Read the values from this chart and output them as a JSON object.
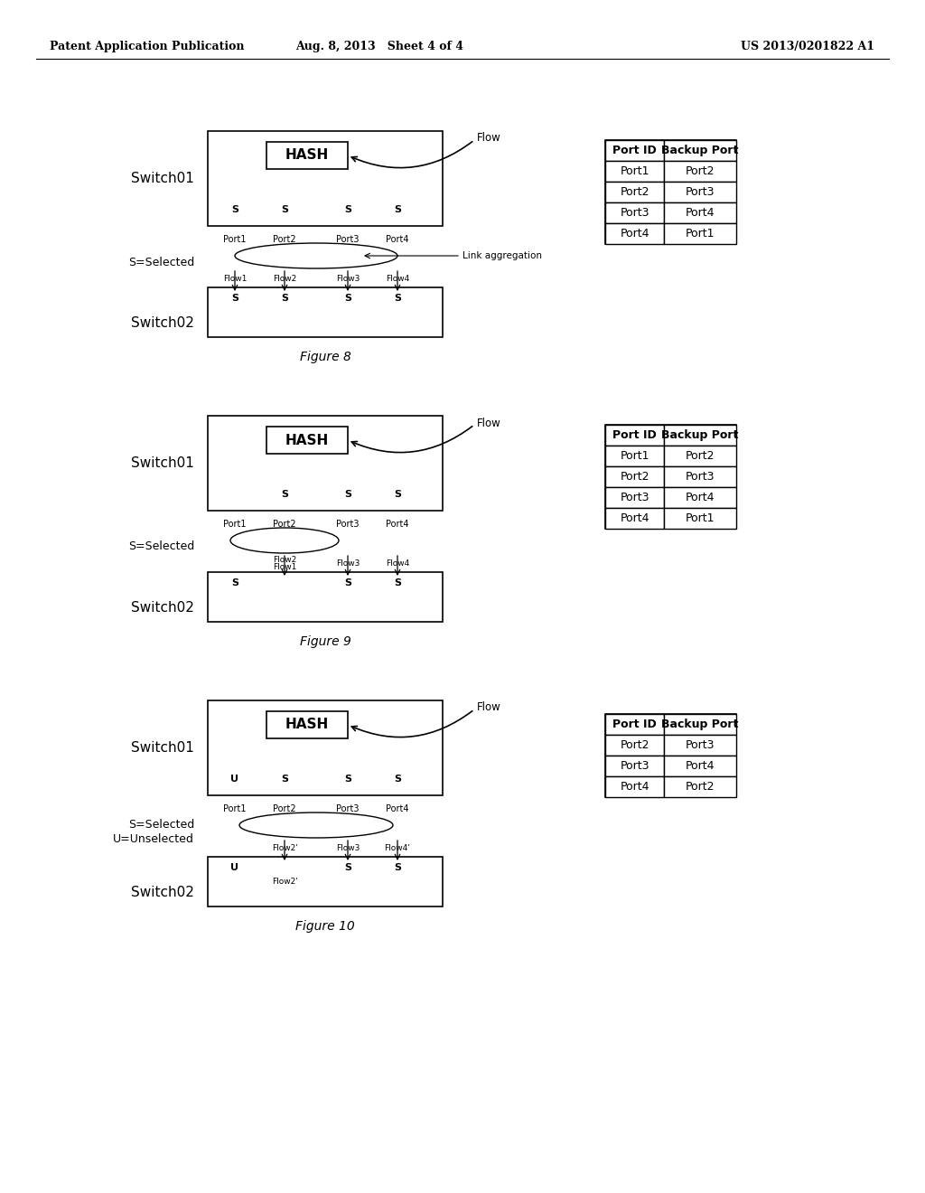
{
  "header_left": "Patent Application Publication",
  "header_mid": "Aug. 8, 2013   Sheet 4 of 4",
  "header_right": "US 2013/0201822 A1",
  "fig8": {
    "caption": "Figure 8",
    "switch01_label": "Switch01",
    "switch02_label": "Switch02",
    "hash_label": "HASH",
    "flow_label": "Flow",
    "link_agg_label": "Link aggregation",
    "s_selected": "S=Selected",
    "ports": [
      "Port1",
      "Port2",
      "Port3",
      "Port4"
    ],
    "port_labels": [
      "S",
      "S",
      "S",
      "S"
    ],
    "port_labels2": [
      "S",
      "S",
      "S",
      "S"
    ],
    "flows": [
      "Flow1",
      "Flow2",
      "Flow3",
      "Flow4"
    ],
    "table_headers": [
      "Port ID",
      "Backup Port"
    ],
    "table_rows": [
      [
        "Port1",
        "Port2"
      ],
      [
        "Port2",
        "Port3"
      ],
      [
        "Port3",
        "Port4"
      ],
      [
        "Port4",
        "Port1"
      ]
    ]
  },
  "fig9": {
    "caption": "Figure 9",
    "switch01_label": "Switch01",
    "switch02_label": "Switch02",
    "hash_label": "HASH",
    "flow_label": "Flow",
    "s_selected": "S=Selected",
    "ports": [
      "Port1",
      "Port2",
      "Port3",
      "Port4"
    ],
    "port_labels": [
      "",
      "S",
      "S",
      "S"
    ],
    "port_labels2": [
      "S",
      "",
      "S",
      "S"
    ],
    "flows": [
      "",
      "Flow2",
      "Flow3",
      "Flow4"
    ],
    "flow2_label": "Flow2\nFlow1",
    "table_headers": [
      "Port ID",
      "Backup Port"
    ],
    "table_rows": [
      [
        "Port1",
        "Port2"
      ],
      [
        "Port2",
        "Port3"
      ],
      [
        "Port3",
        "Port4"
      ],
      [
        "Port4",
        "Port1"
      ]
    ]
  },
  "fig10": {
    "caption": "Figure 10",
    "switch01_label": "Switch01",
    "switch02_label": "Switch02",
    "hash_label": "HASH",
    "flow_label": "Flow",
    "s_selected": "S=Selected",
    "u_unselected": "U=Unselected",
    "ports": [
      "Port1",
      "Port2",
      "Port3",
      "Port4"
    ],
    "port_labels": [
      "U",
      "S",
      "S",
      "S"
    ],
    "port_labels2": [
      "U",
      "",
      "S",
      "S"
    ],
    "flows": [
      "",
      "Flow2'",
      "Flow3",
      "Flow4'"
    ],
    "flow2_label": "Flow2'",
    "table_headers": [
      "Port ID",
      "Backup Port"
    ],
    "table_rows": [
      [
        "Port2",
        "Port3"
      ],
      [
        "Port3",
        "Port4"
      ],
      [
        "Port4",
        "Port2"
      ]
    ]
  },
  "bg_color": "#ffffff",
  "text_color": "#000000",
  "box_color": "#000000",
  "box_fill": "#ffffff"
}
